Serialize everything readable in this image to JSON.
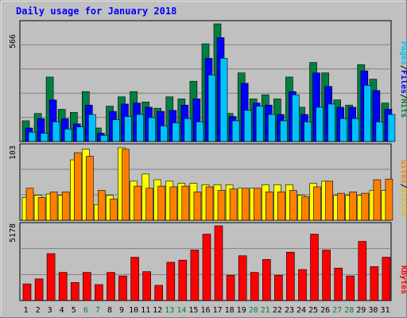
{
  "title": "Daily usage for January 2018",
  "colors": {
    "frame_bg": "#c0c0c0",
    "plot_bg": "#c0c0c0",
    "title": "#0000ff",
    "hits": "#008040",
    "files": "#0000ff",
    "pages": "#00c0ff",
    "visits": "#ffff00",
    "sites": "#ff8000",
    "kbytes": "#ff0000",
    "weekend_day": "#008040",
    "weekday": "#000000"
  },
  "chart_data": [
    {
      "type": "bar",
      "name": "hits-files-pages",
      "ymax_label": "566",
      "ylim": [
        0,
        566
      ],
      "legend_label": [
        "Pages",
        "Files",
        "Hits"
      ],
      "x": [
        1,
        2,
        3,
        4,
        5,
        6,
        7,
        8,
        9,
        10,
        11,
        12,
        13,
        14,
        15,
        16,
        17,
        18,
        19,
        20,
        21,
        22,
        23,
        24,
        25,
        26,
        27,
        28,
        29,
        30,
        31
      ],
      "series": [
        {
          "name": "Hits",
          "values": [
            100,
            135,
            310,
            155,
            140,
            240,
            65,
            170,
            215,
            240,
            190,
            160,
            215,
            205,
            290,
            470,
            566,
            135,
            330,
            205,
            225,
            205,
            310,
            165,
            380,
            330,
            200,
            175,
            370,
            300,
            185
          ]
        },
        {
          "name": "Files",
          "values": [
            65,
            110,
            200,
            110,
            85,
            175,
            40,
            145,
            180,
            185,
            165,
            145,
            150,
            175,
            205,
            400,
            500,
            120,
            280,
            185,
            175,
            130,
            240,
            130,
            330,
            265,
            165,
            165,
            340,
            245,
            155
          ]
        },
        {
          "name": "Pages",
          "values": [
            45,
            40,
            95,
            60,
            70,
            130,
            30,
            105,
            120,
            130,
            115,
            75,
            90,
            110,
            95,
            320,
            400,
            100,
            150,
            170,
            130,
            100,
            225,
            95,
            165,
            180,
            110,
            110,
            270,
            95,
            130
          ]
        }
      ]
    },
    {
      "type": "bar",
      "name": "sites-visits",
      "ymax_label": "103",
      "ylim": [
        0,
        103
      ],
      "legend_label": [
        "Sites",
        "/",
        "Visits"
      ],
      "x": [
        1,
        2,
        3,
        4,
        5,
        6,
        7,
        8,
        9,
        10,
        11,
        12,
        13,
        14,
        15,
        16,
        17,
        18,
        19,
        20,
        21,
        22,
        23,
        24,
        25,
        26,
        27,
        28,
        29,
        30,
        31
      ],
      "series": [
        {
          "name": "Visits",
          "values": [
            32,
            35,
            37,
            35,
            85,
            100,
            22,
            35,
            102,
            55,
            65,
            57,
            55,
            52,
            52,
            50,
            50,
            50,
            45,
            45,
            50,
            50,
            50,
            35,
            52,
            55,
            35,
            35,
            35,
            42,
            42
          ]
        },
        {
          "name": "Sites",
          "values": [
            45,
            32,
            40,
            40,
            95,
            90,
            42,
            30,
            100,
            48,
            45,
            48,
            47,
            48,
            40,
            47,
            42,
            44,
            45,
            45,
            40,
            40,
            42,
            33,
            47,
            55,
            38,
            40,
            38,
            57,
            58
          ]
        }
      ]
    },
    {
      "type": "bar",
      "name": "kbytes",
      "ymax_label": "5178",
      "ylim": [
        0,
        5178
      ],
      "legend_label": "KBytes",
      "x": [
        1,
        2,
        3,
        4,
        5,
        6,
        7,
        8,
        9,
        10,
        11,
        12,
        13,
        14,
        15,
        16,
        17,
        18,
        19,
        20,
        21,
        22,
        23,
        24,
        25,
        26,
        27,
        28,
        29,
        30,
        31
      ],
      "series": [
        {
          "name": "KBytes",
          "values": [
            1150,
            1500,
            3250,
            1950,
            1250,
            1950,
            1100,
            1950,
            1700,
            3000,
            2000,
            1050,
            2650,
            2800,
            3500,
            4600,
            5178,
            1750,
            3100,
            1950,
            2850,
            1750,
            3350,
            2150,
            4600,
            3500,
            2250,
            1700,
            4100,
            2350,
            3000
          ]
        }
      ]
    }
  ],
  "days": [
    "1",
    "2",
    "3",
    "4",
    "5",
    "6",
    "7",
    "8",
    "9",
    "10",
    "11",
    "12",
    "13",
    "14",
    "15",
    "16",
    "17",
    "18",
    "19",
    "20",
    "21",
    "22",
    "23",
    "24",
    "25",
    "26",
    "27",
    "28",
    "29",
    "30",
    "31"
  ],
  "weekend_days": [
    6,
    7,
    13,
    14,
    20,
    21,
    27,
    28
  ]
}
